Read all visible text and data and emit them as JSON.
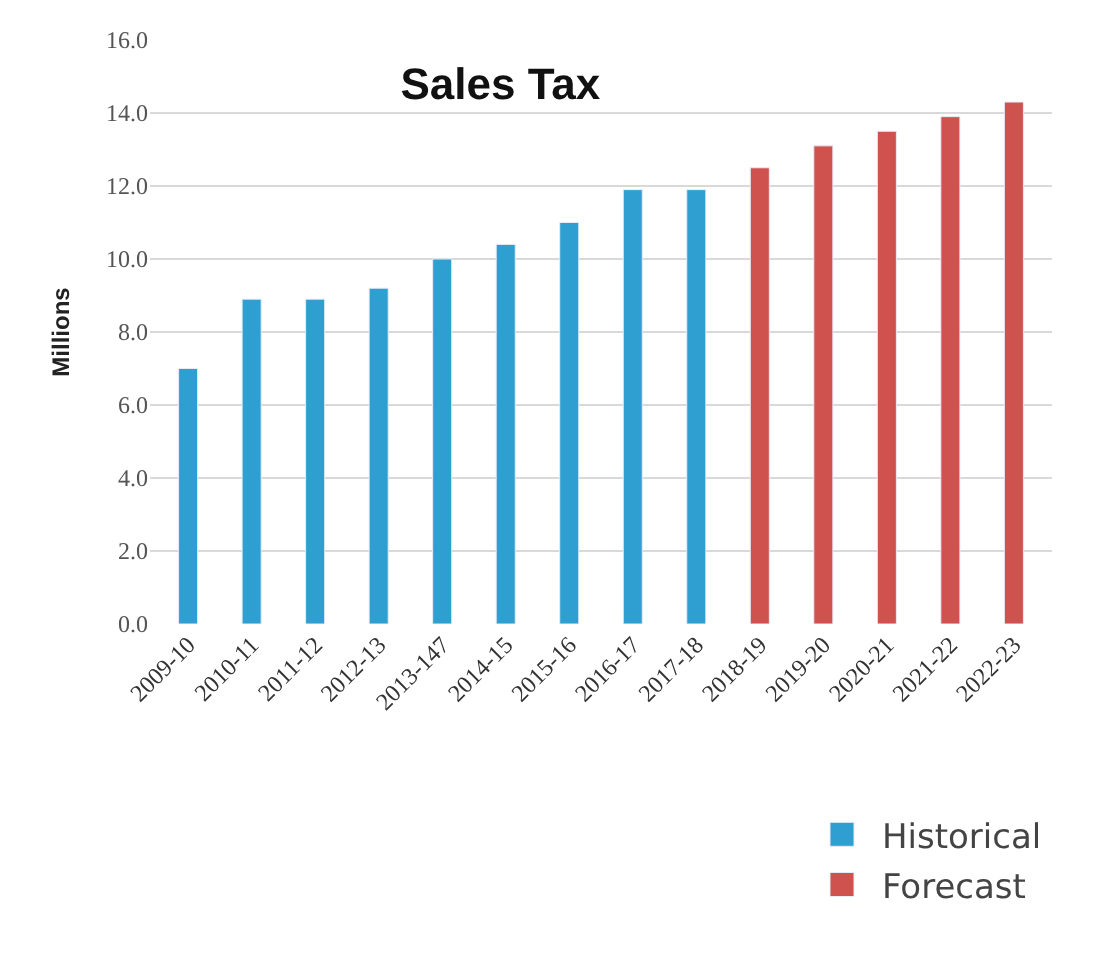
{
  "chart_data": {
    "type": "bar",
    "title": "Sales Tax",
    "ylabel": "Millions",
    "categories": [
      "2009-10",
      "2010-11",
      "2011-12",
      "2012-13",
      "2013-147",
      "2014-15",
      "2015-16",
      "2016-17",
      "2017-18",
      "2018-19",
      "2019-20",
      "2020-21",
      "2021-22",
      "2022-23"
    ],
    "series": [
      {
        "name": "Historical",
        "color": "#2e9fd0",
        "values": [
          7.0,
          8.9,
          8.9,
          9.2,
          10.0,
          10.4,
          11.0,
          11.9,
          11.9,
          null,
          null,
          null,
          null,
          null
        ]
      },
      {
        "name": "Forecast",
        "color": "#d0524f",
        "values": [
          null,
          null,
          null,
          null,
          null,
          null,
          null,
          null,
          null,
          12.5,
          13.1,
          13.5,
          13.9,
          14.3
        ]
      }
    ],
    "ylim": [
      0,
      16
    ],
    "yticks": [
      {
        "value": 0,
        "label": "0.0"
      },
      {
        "value": 2,
        "label": "2.0"
      },
      {
        "value": 4,
        "label": "4.0"
      },
      {
        "value": 6,
        "label": "6.0"
      },
      {
        "value": 8,
        "label": "8.0"
      },
      {
        "value": 10,
        "label": "10.0"
      },
      {
        "value": 12,
        "label": "12.0"
      },
      {
        "value": 14,
        "label": "14.0"
      },
      {
        "value": 16,
        "label": "16.0"
      }
    ],
    "grid": "y",
    "legend": "bottom right"
  }
}
